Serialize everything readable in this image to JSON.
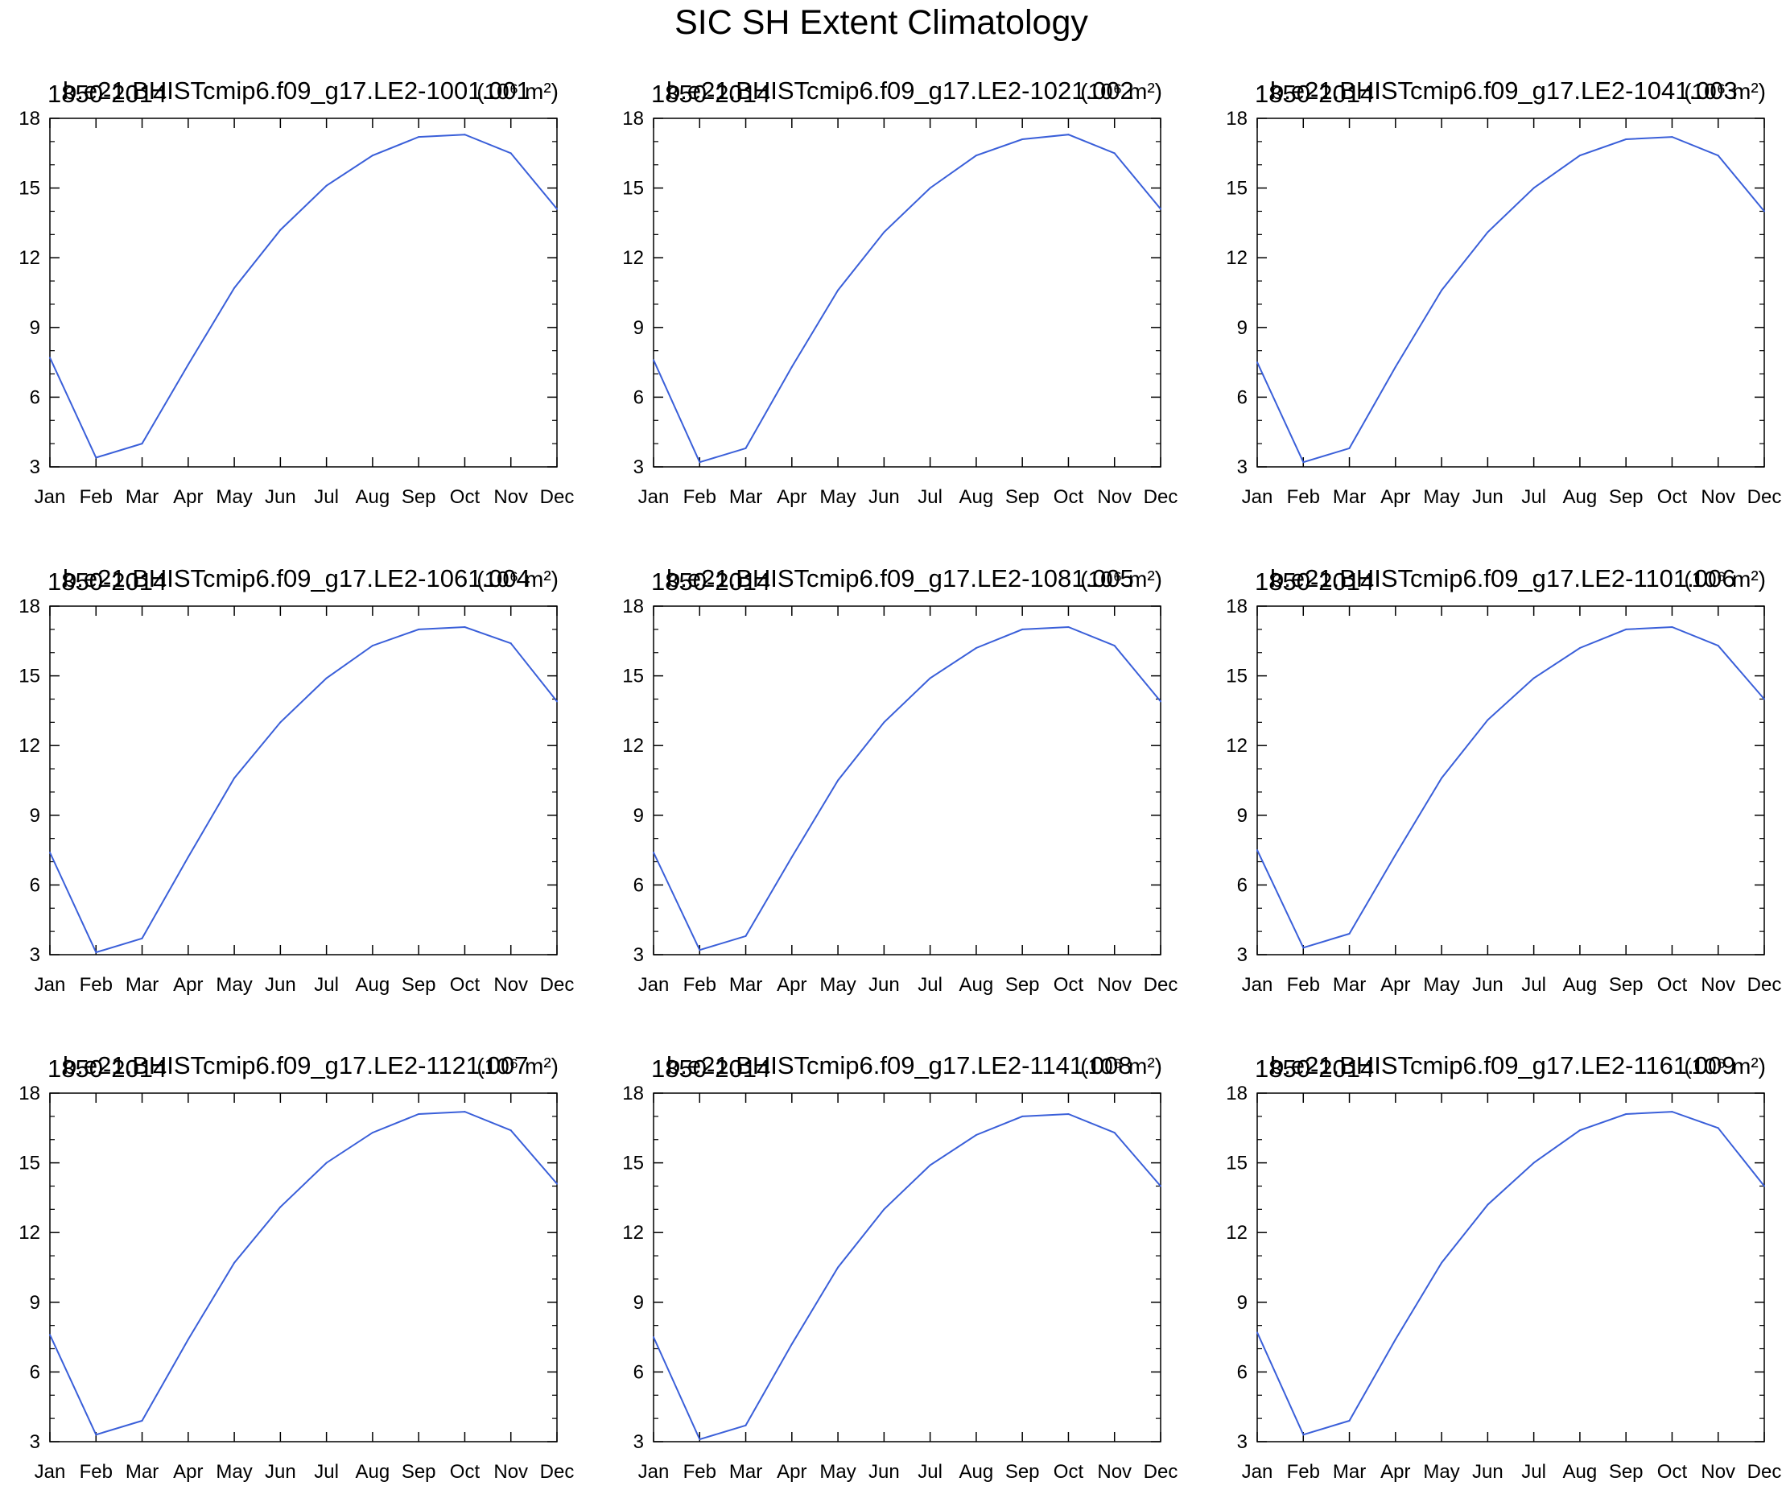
{
  "figure": {
    "title": "SIC SH Extent Climatology",
    "line_color": "#3a5fd9",
    "units": "(10⁶ m²)"
  },
  "chart_data": [
    {
      "type": "line",
      "title": "b.e21.BHISTcmip6.f09_g17.LE2-1001.001",
      "period": "1850-2014",
      "units": "(10⁶ m²)",
      "categories": [
        "Jan",
        "Feb",
        "Mar",
        "Apr",
        "May",
        "Jun",
        "Jul",
        "Aug",
        "Sep",
        "Oct",
        "Nov",
        "Dec"
      ],
      "values": [
        7.7,
        3.4,
        4.0,
        7.4,
        10.7,
        13.2,
        15.1,
        16.4,
        17.2,
        17.3,
        16.5,
        14.1
      ],
      "yticks": [
        3,
        6,
        9,
        12,
        15,
        18
      ],
      "ylim": [
        3,
        18
      ]
    },
    {
      "type": "line",
      "title": "b.e21.BHISTcmip6.f09_g17.LE2-1021.002",
      "period": "1850-2014",
      "units": "(10⁶ m²)",
      "categories": [
        "Jan",
        "Feb",
        "Mar",
        "Apr",
        "May",
        "Jun",
        "Jul",
        "Aug",
        "Sep",
        "Oct",
        "Nov",
        "Dec"
      ],
      "values": [
        7.6,
        3.2,
        3.8,
        7.3,
        10.6,
        13.1,
        15.0,
        16.4,
        17.1,
        17.3,
        16.5,
        14.1
      ],
      "yticks": [
        3,
        6,
        9,
        12,
        15,
        18
      ],
      "ylim": [
        3,
        18
      ]
    },
    {
      "type": "line",
      "title": "b.e21.BHISTcmip6.f09_g17.LE2-1041.003",
      "period": "1850-2014",
      "units": "(10⁶ m²)",
      "categories": [
        "Jan",
        "Feb",
        "Mar",
        "Apr",
        "May",
        "Jun",
        "Jul",
        "Aug",
        "Sep",
        "Oct",
        "Nov",
        "Dec"
      ],
      "values": [
        7.5,
        3.2,
        3.8,
        7.3,
        10.6,
        13.1,
        15.0,
        16.4,
        17.1,
        17.2,
        16.4,
        14.0
      ],
      "yticks": [
        3,
        6,
        9,
        12,
        15,
        18
      ],
      "ylim": [
        3,
        18
      ]
    },
    {
      "type": "line",
      "title": "b.e21.BHISTcmip6.f09_g17.LE2-1061.004",
      "period": "1850-2014",
      "units": "(10⁶ m²)",
      "categories": [
        "Jan",
        "Feb",
        "Mar",
        "Apr",
        "May",
        "Jun",
        "Jul",
        "Aug",
        "Sep",
        "Oct",
        "Nov",
        "Dec"
      ],
      "values": [
        7.4,
        3.1,
        3.7,
        7.2,
        10.6,
        13.0,
        14.9,
        16.3,
        17.0,
        17.1,
        16.4,
        13.9
      ],
      "yticks": [
        3,
        6,
        9,
        12,
        15,
        18
      ],
      "ylim": [
        3,
        18
      ]
    },
    {
      "type": "line",
      "title": "b.e21.BHISTcmip6.f09_g17.LE2-1081.005",
      "period": "1850-2014",
      "units": "(10⁶ m²)",
      "categories": [
        "Jan",
        "Feb",
        "Mar",
        "Apr",
        "May",
        "Jun",
        "Jul",
        "Aug",
        "Sep",
        "Oct",
        "Nov",
        "Dec"
      ],
      "values": [
        7.4,
        3.2,
        3.8,
        7.2,
        10.5,
        13.0,
        14.9,
        16.2,
        17.0,
        17.1,
        16.3,
        13.9
      ],
      "yticks": [
        3,
        6,
        9,
        12,
        15,
        18
      ],
      "ylim": [
        3,
        18
      ]
    },
    {
      "type": "line",
      "title": "b.e21.BHISTcmip6.f09_g17.LE2-1101.006",
      "period": "1850-2014",
      "units": "(10⁶ m²)",
      "categories": [
        "Jan",
        "Feb",
        "Mar",
        "Apr",
        "May",
        "Jun",
        "Jul",
        "Aug",
        "Sep",
        "Oct",
        "Nov",
        "Dec"
      ],
      "values": [
        7.5,
        3.3,
        3.9,
        7.3,
        10.6,
        13.1,
        14.9,
        16.2,
        17.0,
        17.1,
        16.3,
        14.0
      ],
      "yticks": [
        3,
        6,
        9,
        12,
        15,
        18
      ],
      "ylim": [
        3,
        18
      ]
    },
    {
      "type": "line",
      "title": "b.e21.BHISTcmip6.f09_g17.LE2-1121.007",
      "period": "1850-2014",
      "units": "(10⁶ m²)",
      "categories": [
        "Jan",
        "Feb",
        "Mar",
        "Apr",
        "May",
        "Jun",
        "Jul",
        "Aug",
        "Sep",
        "Oct",
        "Nov",
        "Dec"
      ],
      "values": [
        7.6,
        3.3,
        3.9,
        7.4,
        10.7,
        13.1,
        15.0,
        16.3,
        17.1,
        17.2,
        16.4,
        14.1
      ],
      "yticks": [
        3,
        6,
        9,
        12,
        15,
        18
      ],
      "ylim": [
        3,
        18
      ]
    },
    {
      "type": "line",
      "title": "b.e21.BHISTcmip6.f09_g17.LE2-1141.008",
      "period": "1850-2014",
      "units": "(10⁶ m²)",
      "categories": [
        "Jan",
        "Feb",
        "Mar",
        "Apr",
        "May",
        "Jun",
        "Jul",
        "Aug",
        "Sep",
        "Oct",
        "Nov",
        "Dec"
      ],
      "values": [
        7.5,
        3.1,
        3.7,
        7.2,
        10.5,
        13.0,
        14.9,
        16.2,
        17.0,
        17.1,
        16.3,
        14.0
      ],
      "yticks": [
        3,
        6,
        9,
        12,
        15,
        18
      ],
      "ylim": [
        3,
        18
      ]
    },
    {
      "type": "line",
      "title": "b.e21.BHISTcmip6.f09_g17.LE2-1161.009",
      "period": "1850-2014",
      "units": "(10⁶ m²)",
      "categories": [
        "Jan",
        "Feb",
        "Mar",
        "Apr",
        "May",
        "Jun",
        "Jul",
        "Aug",
        "Sep",
        "Oct",
        "Nov",
        "Dec"
      ],
      "values": [
        7.7,
        3.3,
        3.9,
        7.4,
        10.7,
        13.2,
        15.0,
        16.4,
        17.1,
        17.2,
        16.5,
        14.0
      ],
      "yticks": [
        3,
        6,
        9,
        12,
        15,
        18
      ],
      "ylim": [
        3,
        18
      ]
    }
  ]
}
